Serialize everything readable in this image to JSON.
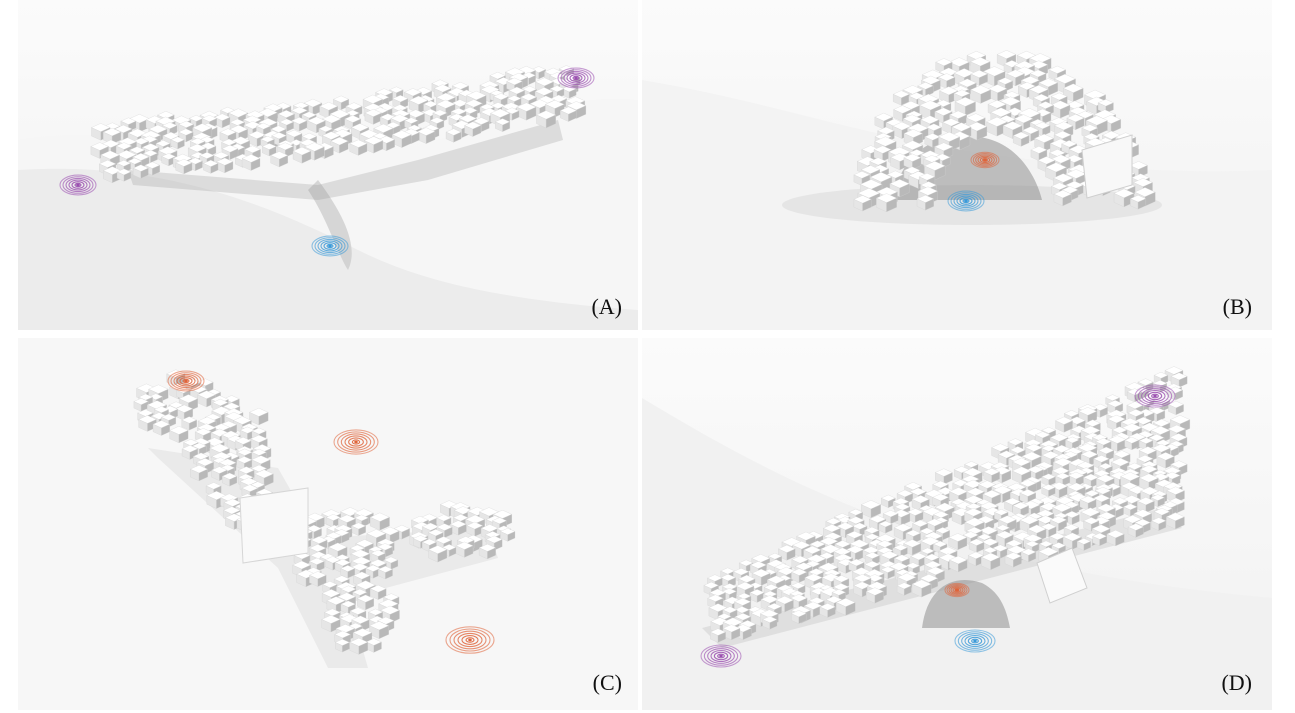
{
  "panels": [
    {
      "id": "A",
      "label": "(A)"
    },
    {
      "id": "B",
      "label": "(B)"
    },
    {
      "id": "C",
      "label": "(C)"
    },
    {
      "id": "D",
      "label": "(D)"
    }
  ],
  "colors": {
    "background": "#ffffff",
    "voxel_face_light": "#ffffff",
    "voxel_face_mid": "#e6e6e6",
    "voxel_face_dark": "#b9b9b9",
    "shadow": "#8f8f8f",
    "signal_purple": "#9b4fb0",
    "signal_blue": "#3a9ad9",
    "signal_orange": "#e0643a"
  },
  "icons": [
    "signal-ring-icon"
  ]
}
